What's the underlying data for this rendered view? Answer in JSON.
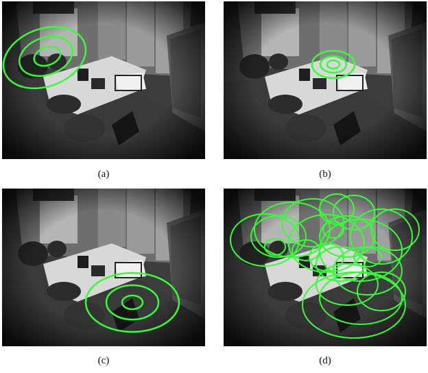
{
  "panels": [
    {
      "id": "a",
      "caption": "(a)"
    },
    {
      "id": "b",
      "caption": "(b)"
    },
    {
      "id": "c",
      "caption": "(c)"
    },
    {
      "id": "d",
      "caption": "(d)"
    }
  ],
  "colors": {
    "ellipse_stroke": "#33ff33",
    "scene_floor": "#3a3a3a",
    "scene_wall": "#7a7a7a",
    "scene_desk": "#d8d8d8"
  }
}
